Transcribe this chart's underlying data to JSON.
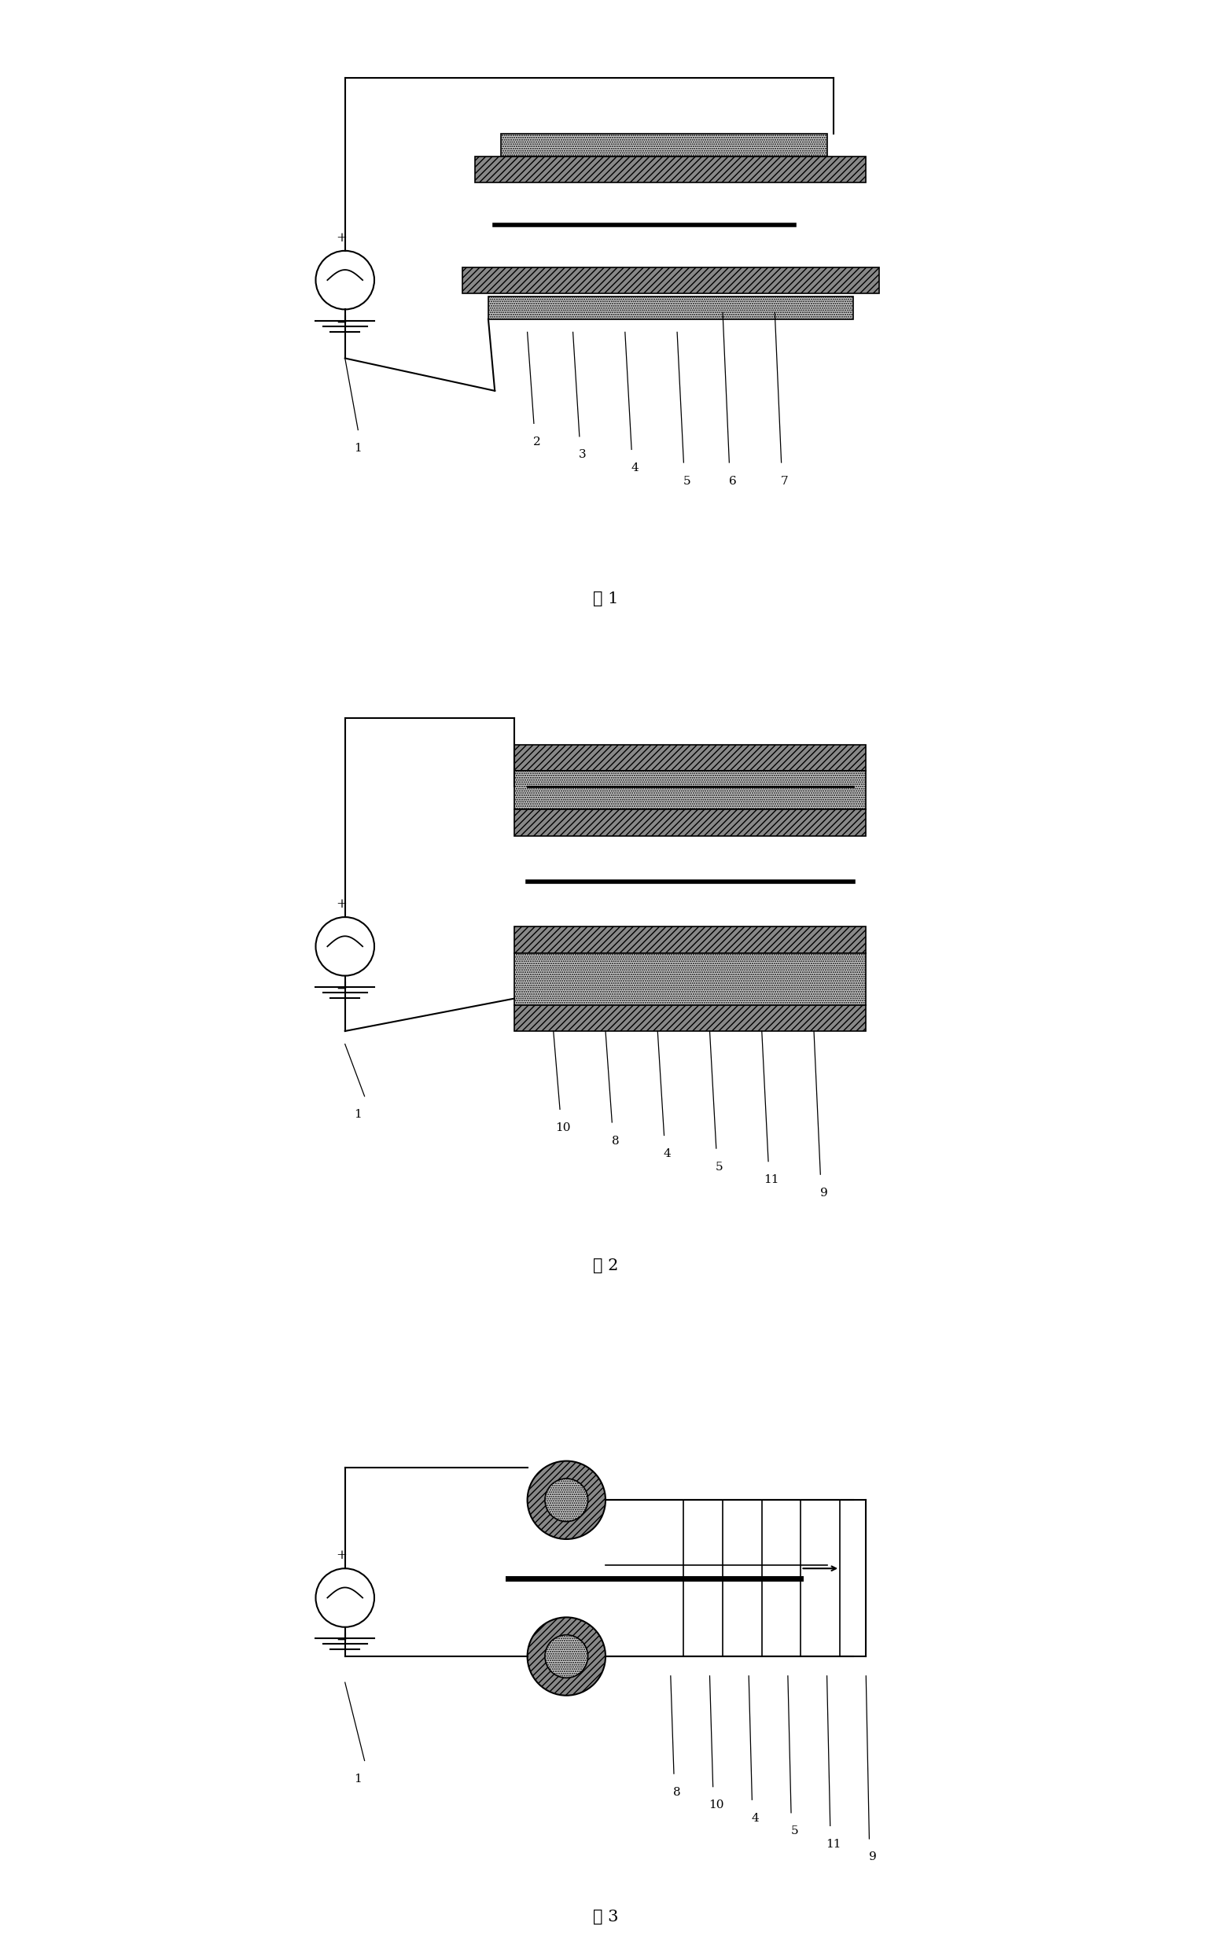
{
  "fig_width": 15.4,
  "fig_height": 24.87,
  "bg_color": "#ffffff",
  "lc": "#000000",
  "hatch_gray": "#888888",
  "dot_gray": "#d0d0d0",
  "fig1_label": "图 1",
  "fig2_label": "图 2",
  "fig3_label": "图 3",
  "labels_fig1": [
    "1",
    "2",
    "3",
    "4",
    "5",
    "6",
    "7"
  ],
  "labels_fig2": [
    "1",
    "10",
    "8",
    "4",
    "5",
    "11",
    "9"
  ],
  "labels_fig3": [
    "1",
    "8",
    "10",
    "4",
    "5",
    "11",
    "9"
  ]
}
